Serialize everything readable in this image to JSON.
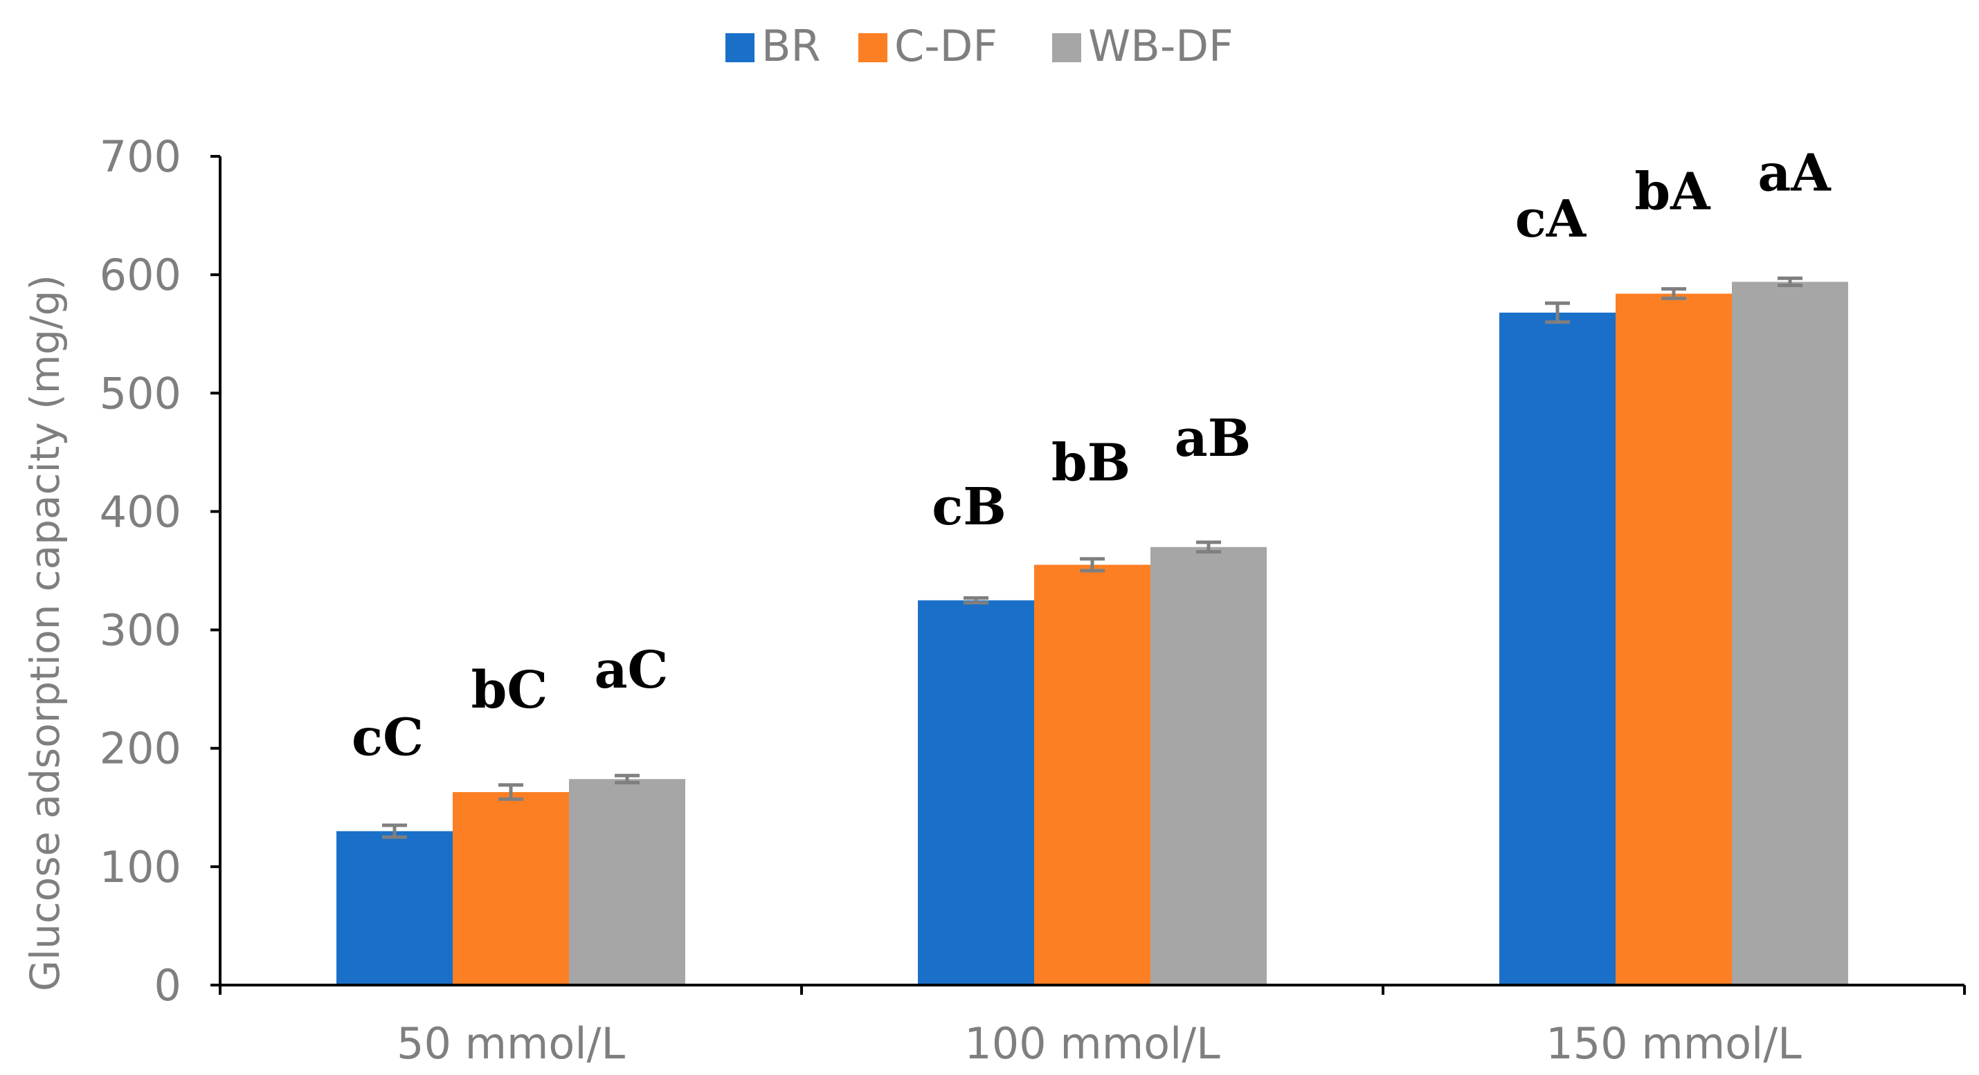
{
  "chart_data": {
    "type": "bar",
    "title": "",
    "xlabel": "",
    "ylabel": "Glucose adsorption capacity (mg/g)",
    "ylim": [
      0,
      700
    ],
    "yticks": [
      0,
      100,
      200,
      300,
      400,
      500,
      600,
      700
    ],
    "categories": [
      "50 mmol/L",
      "100 mmol/L",
      "150 mmol/L"
    ],
    "series": [
      {
        "name": "BR",
        "color": "#1a70c8",
        "values": [
          130,
          325,
          568
        ],
        "errors": [
          5,
          2,
          8
        ],
        "labels": [
          "cC",
          "cB",
          "cA"
        ]
      },
      {
        "name": "C-DF",
        "color": "#fd7f23",
        "values": [
          163,
          355,
          584
        ],
        "errors": [
          6,
          5,
          4
        ],
        "labels": [
          "bC",
          "bB",
          "bA"
        ]
      },
      {
        "name": "WB-DF",
        "color": "#a6a6a6",
        "values": [
          174,
          370,
          594
        ],
        "errors": [
          3,
          4,
          3
        ],
        "labels": [
          "aC",
          "aB",
          "aA"
        ]
      }
    ],
    "error_bar_color": "#7f7f7f",
    "legend_position": "top-center",
    "grid": false
  }
}
